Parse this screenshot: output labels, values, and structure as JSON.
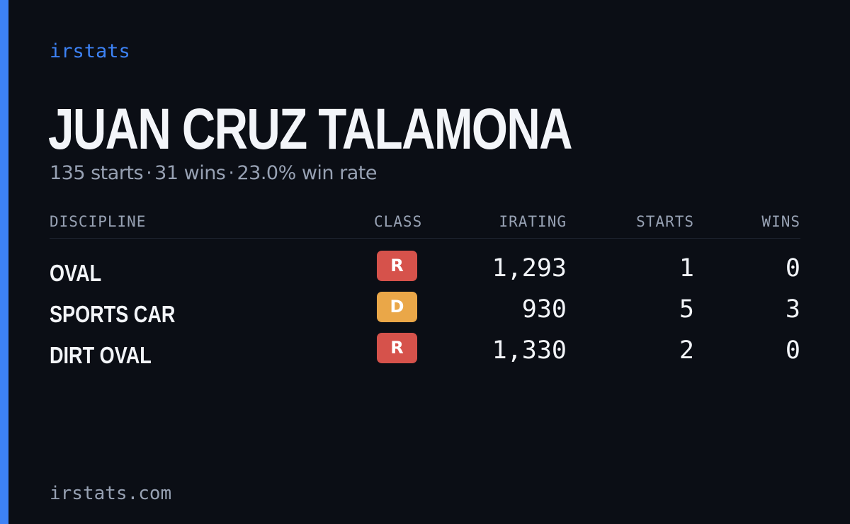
{
  "brand": "irstats",
  "player": {
    "name": "JUAN CRUZ TALAMONA",
    "starts_text": "135 starts",
    "wins_text": "31 wins",
    "win_rate_text": "23.0% win rate",
    "separator": "·"
  },
  "table": {
    "headers": {
      "discipline": "DISCIPLINE",
      "class": "CLASS",
      "irating": "IRATING",
      "starts": "STARTS",
      "wins": "WINS"
    },
    "rows": [
      {
        "discipline": "OVAL",
        "class": "R",
        "class_color": "#d6524b",
        "irating": "1,293",
        "starts": "1",
        "wins": "0"
      },
      {
        "discipline": "SPORTS CAR",
        "class": "D",
        "class_color": "#eaa748",
        "irating": "930",
        "starts": "5",
        "wins": "3"
      },
      {
        "discipline": "DIRT OVAL",
        "class": "R",
        "class_color": "#d6524b",
        "irating": "1,330",
        "starts": "2",
        "wins": "0"
      }
    ]
  },
  "footer": "irstats.com",
  "colors": {
    "background": "#0b0e15",
    "accent": "#3d82f5",
    "text_primary": "#f3f5f9",
    "text_muted": "#97a1b3"
  }
}
